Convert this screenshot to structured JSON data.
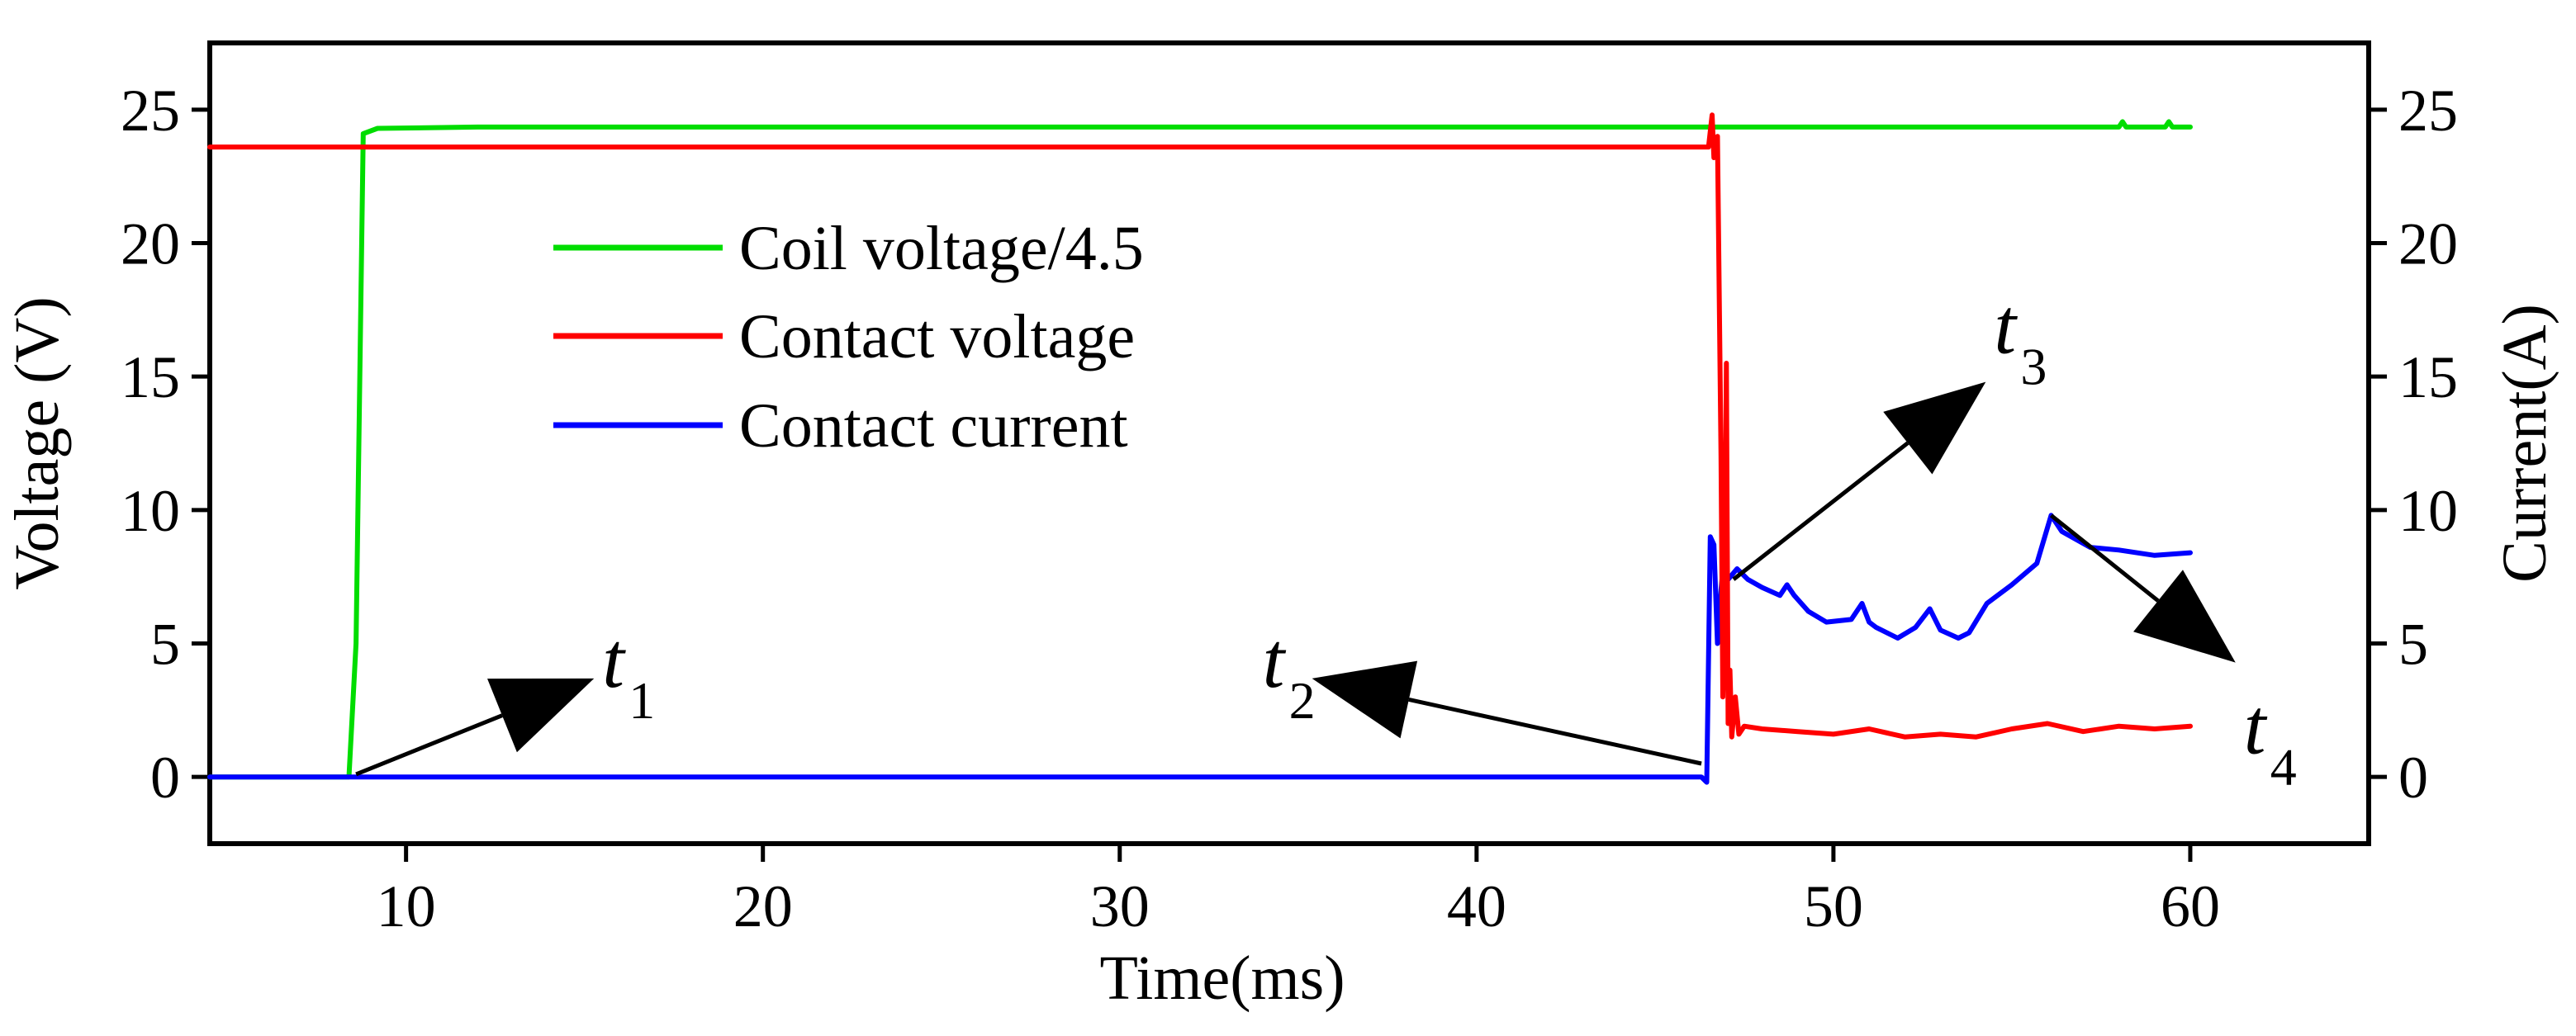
{
  "chart_data": {
    "type": "line",
    "title": "",
    "xlabel": "Time(ms)",
    "ylabel_left": "Voltage (V)",
    "ylabel_right": "Current(A)",
    "xlim": [
      4.5,
      65
    ],
    "ylim": [
      -2.5,
      27.5
    ],
    "ylim_right": [
      -2.5,
      27.5
    ],
    "x_ticks": [
      10,
      20,
      30,
      40,
      50,
      60
    ],
    "y_ticks": [
      0,
      5,
      10,
      15,
      20,
      25
    ],
    "y_ticks_right": [
      0,
      5,
      10,
      15,
      20,
      25
    ],
    "grid": false,
    "legend_position": "upper-left",
    "series": [
      {
        "name": "Coil voltage/4.5",
        "color": "#00dd00",
        "x": [
          4.5,
          8.4,
          8.6,
          8.8,
          9.2,
          12,
          20,
          30,
          40,
          46.6,
          50,
          55,
          58,
          58.1,
          58.2,
          59.3,
          59.4,
          59.5,
          60
        ],
        "y": [
          0,
          0,
          5,
          24.1,
          24.3,
          24.35,
          24.35,
          24.35,
          24.35,
          24.35,
          24.35,
          24.35,
          24.35,
          24.55,
          24.35,
          24.35,
          24.55,
          24.35,
          24.35
        ]
      },
      {
        "name": "Contact voltage",
        "color": "#ff0000",
        "x": [
          4.5,
          10,
          20,
          30,
          40,
          46,
          46.5,
          46.6,
          46.65,
          46.75,
          46.85,
          46.9,
          46.95,
          47.0,
          47.05,
          47.1,
          47.15,
          47.25,
          47.35,
          47.5,
          48,
          49,
          50,
          51,
          52,
          53,
          54,
          55,
          56,
          57,
          58,
          59,
          60
        ],
        "y": [
          23.6,
          23.6,
          23.6,
          23.6,
          23.6,
          23.6,
          23.6,
          24.8,
          23.2,
          24.0,
          12.0,
          3.0,
          6.0,
          15.5,
          2.0,
          4.0,
          1.5,
          3.0,
          1.6,
          1.9,
          1.8,
          1.7,
          1.6,
          1.8,
          1.5,
          1.6,
          1.5,
          1.8,
          2.0,
          1.7,
          1.9,
          1.8,
          1.9
        ]
      },
      {
        "name": "Contact current",
        "color": "#0000ff",
        "x": [
          4.5,
          10,
          20,
          30,
          40,
          46.3,
          46.45,
          46.55,
          46.65,
          46.75,
          46.85,
          46.95,
          47.05,
          47.3,
          47.6,
          48.0,
          48.5,
          48.7,
          48.9,
          49.3,
          49.8,
          50.5,
          50.8,
          51.0,
          51.2,
          51.8,
          52.3,
          52.7,
          53.0,
          53.5,
          53.8,
          54.3,
          55.0,
          55.7,
          56.1,
          56.4,
          57.2,
          58.0,
          59.0,
          60.0
        ],
        "y": [
          0,
          0,
          0,
          0,
          0,
          0,
          -0.2,
          9.0,
          8.7,
          5.0,
          7.0,
          8.5,
          7.4,
          7.8,
          7.4,
          7.1,
          6.8,
          7.2,
          6.8,
          6.2,
          5.8,
          5.9,
          6.5,
          5.8,
          5.6,
          5.2,
          5.6,
          6.3,
          5.5,
          5.2,
          5.4,
          6.5,
          7.2,
          8.0,
          9.8,
          9.2,
          8.6,
          8.5,
          8.3,
          8.4
        ]
      }
    ],
    "annotations": [
      {
        "label": "t",
        "sub": "1",
        "target": [
          8.6,
          0.1
        ],
        "text_at": [
          15.5,
          4.0
        ]
      },
      {
        "label": "t",
        "sub": "2",
        "target": [
          46.3,
          0.5
        ],
        "text_at": [
          34.0,
          4.0
        ]
      },
      {
        "label": "t",
        "sub": "3",
        "target": [
          47.2,
          7.4
        ],
        "text_at": [
          54.5,
          16.5
        ]
      },
      {
        "label": "t",
        "sub": "4",
        "target": [
          56.1,
          9.8
        ],
        "text_at": [
          61.5,
          1.5
        ]
      }
    ]
  }
}
